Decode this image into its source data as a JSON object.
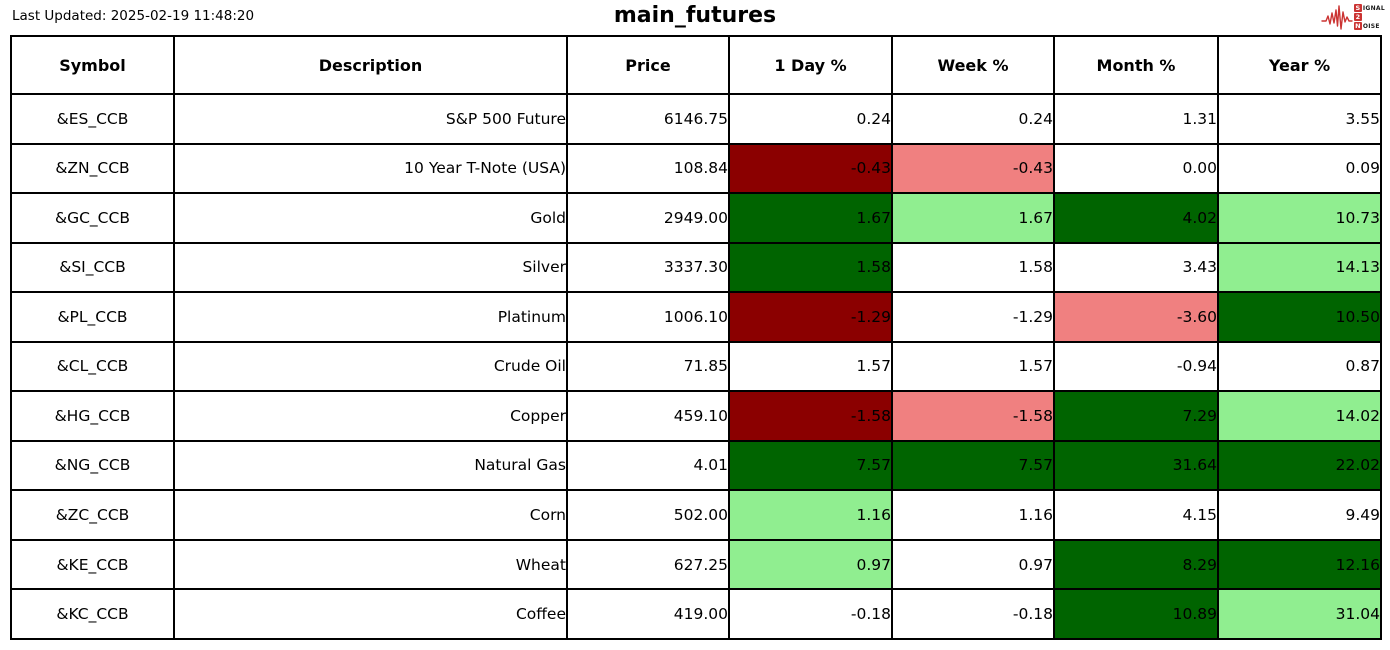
{
  "header": {
    "last_updated": "Last Updated: 2025-02-19 11:48:20",
    "title": "main_futures",
    "logo": {
      "color": "#CB3332",
      "box1": "S",
      "rest1": "IGNAL",
      "box2": "2",
      "box3": "N",
      "rest3": "OISE"
    }
  },
  "colors": {
    "neutral": "#FFFFFF",
    "positive_strong": "#006400",
    "positive_mild": "#90EE90",
    "negative_strong": "#8B0000",
    "negative_mild": "#F08080"
  },
  "chart_data": {
    "type": "table",
    "title": "main_futures",
    "columns": [
      "Symbol",
      "Description",
      "Price",
      "1 Day %",
      "Week %",
      "Month %",
      "Year %"
    ],
    "rows": [
      {
        "symbol": "&ES_CCB",
        "description": "S&P 500 Future",
        "price": "6146.75",
        "pcts": [
          {
            "value": "0.24",
            "bg": "neutral"
          },
          {
            "value": "0.24",
            "bg": "neutral"
          },
          {
            "value": "1.31",
            "bg": "neutral"
          },
          {
            "value": "3.55",
            "bg": "neutral"
          }
        ]
      },
      {
        "symbol": "&ZN_CCB",
        "description": "10 Year T-Note (USA)",
        "price": "108.84",
        "pcts": [
          {
            "value": "-0.43",
            "bg": "negative_strong"
          },
          {
            "value": "-0.43",
            "bg": "negative_mild"
          },
          {
            "value": "0.00",
            "bg": "neutral"
          },
          {
            "value": "0.09",
            "bg": "neutral"
          }
        ]
      },
      {
        "symbol": "&GC_CCB",
        "description": "Gold",
        "price": "2949.00",
        "pcts": [
          {
            "value": "1.67",
            "bg": "positive_strong"
          },
          {
            "value": "1.67",
            "bg": "positive_mild"
          },
          {
            "value": "4.02",
            "bg": "positive_strong"
          },
          {
            "value": "10.73",
            "bg": "positive_mild"
          }
        ]
      },
      {
        "symbol": "&SI_CCB",
        "description": "Silver",
        "price": "3337.30",
        "pcts": [
          {
            "value": "1.58",
            "bg": "positive_strong"
          },
          {
            "value": "1.58",
            "bg": "neutral"
          },
          {
            "value": "3.43",
            "bg": "neutral"
          },
          {
            "value": "14.13",
            "bg": "positive_mild"
          }
        ]
      },
      {
        "symbol": "&PL_CCB",
        "description": "Platinum",
        "price": "1006.10",
        "pcts": [
          {
            "value": "-1.29",
            "bg": "negative_strong"
          },
          {
            "value": "-1.29",
            "bg": "neutral"
          },
          {
            "value": "-3.60",
            "bg": "negative_mild"
          },
          {
            "value": "10.50",
            "bg": "positive_strong"
          }
        ]
      },
      {
        "symbol": "&CL_CCB",
        "description": "Crude Oil",
        "price": "71.85",
        "pcts": [
          {
            "value": "1.57",
            "bg": "neutral"
          },
          {
            "value": "1.57",
            "bg": "neutral"
          },
          {
            "value": "-0.94",
            "bg": "neutral"
          },
          {
            "value": "0.87",
            "bg": "neutral"
          }
        ]
      },
      {
        "symbol": "&HG_CCB",
        "description": "Copper",
        "price": "459.10",
        "pcts": [
          {
            "value": "-1.58",
            "bg": "negative_strong"
          },
          {
            "value": "-1.58",
            "bg": "negative_mild"
          },
          {
            "value": "7.29",
            "bg": "positive_strong"
          },
          {
            "value": "14.02",
            "bg": "positive_mild"
          }
        ]
      },
      {
        "symbol": "&NG_CCB",
        "description": "Natural Gas",
        "price": "4.01",
        "pcts": [
          {
            "value": "7.57",
            "bg": "positive_strong"
          },
          {
            "value": "7.57",
            "bg": "positive_strong"
          },
          {
            "value": "31.64",
            "bg": "positive_strong"
          },
          {
            "value": "22.02",
            "bg": "positive_strong"
          }
        ]
      },
      {
        "symbol": "&ZC_CCB",
        "description": "Corn",
        "price": "502.00",
        "pcts": [
          {
            "value": "1.16",
            "bg": "positive_mild"
          },
          {
            "value": "1.16",
            "bg": "neutral"
          },
          {
            "value": "4.15",
            "bg": "neutral"
          },
          {
            "value": "9.49",
            "bg": "neutral"
          }
        ]
      },
      {
        "symbol": "&KE_CCB",
        "description": "Wheat",
        "price": "627.25",
        "pcts": [
          {
            "value": "0.97",
            "bg": "positive_mild"
          },
          {
            "value": "0.97",
            "bg": "neutral"
          },
          {
            "value": "8.29",
            "bg": "positive_strong"
          },
          {
            "value": "12.16",
            "bg": "positive_strong"
          }
        ]
      },
      {
        "symbol": "&KC_CCB",
        "description": "Coffee",
        "price": "419.00",
        "pcts": [
          {
            "value": "-0.18",
            "bg": "neutral"
          },
          {
            "value": "-0.18",
            "bg": "neutral"
          },
          {
            "value": "10.89",
            "bg": "positive_strong"
          },
          {
            "value": "31.04",
            "bg": "positive_mild"
          }
        ]
      }
    ]
  }
}
